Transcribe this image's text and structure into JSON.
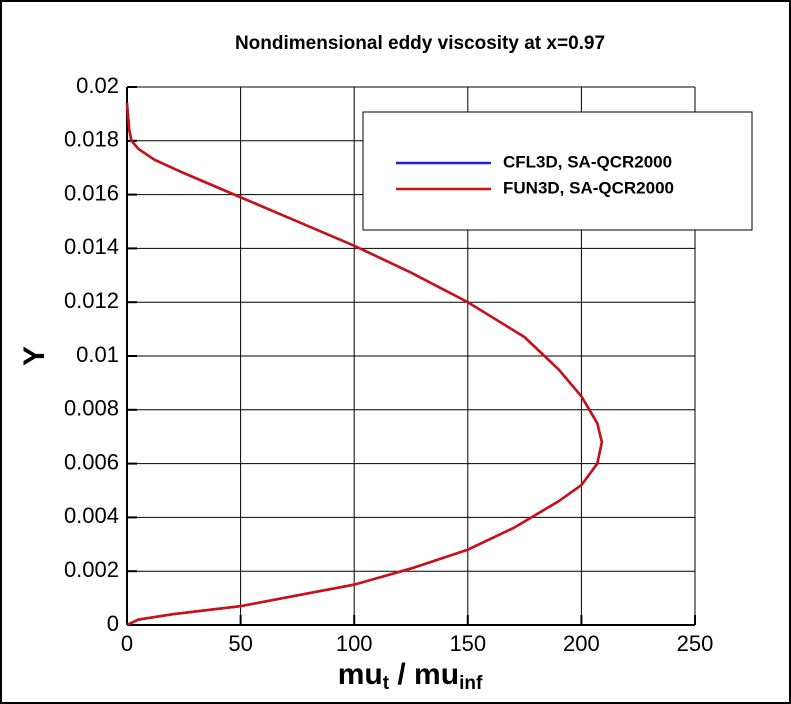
{
  "chart_data": {
    "type": "line",
    "title": "Nondimensional eddy viscosity at x=0.97",
    "xlabel": [
      "mu",
      "t",
      " / mu",
      "inf"
    ],
    "ylabel": "Y",
    "xlim": [
      0,
      250
    ],
    "xticks": [
      0,
      50,
      100,
      150,
      200,
      250
    ],
    "ylim": [
      0,
      0.02
    ],
    "yticks": [
      0,
      0.002,
      0.004,
      0.006,
      0.008,
      0.01,
      0.012,
      0.014,
      0.016,
      0.018,
      0.02
    ],
    "grid": true,
    "legend": "upper right",
    "series": [
      {
        "name": "CFL3D, SA-QCR2000",
        "color": "#1f1fe0",
        "x": [
          0,
          5,
          20,
          50,
          75,
          100,
          125,
          150,
          170,
          190,
          200,
          207,
          209,
          207,
          200,
          190,
          175,
          150,
          125,
          100,
          75,
          50,
          25,
          12,
          5,
          2,
          1,
          0.5,
          0
        ],
        "values": [
          0,
          0.0002,
          0.0004,
          0.0007,
          0.0011,
          0.0015,
          0.0021,
          0.0028,
          0.0036,
          0.0046,
          0.0052,
          0.006,
          0.0068,
          0.0075,
          0.0085,
          0.0095,
          0.0107,
          0.012,
          0.0131,
          0.0141,
          0.015,
          0.0159,
          0.0168,
          0.0173,
          0.0177,
          0.018,
          0.0184,
          0.0189,
          0.0194
        ]
      },
      {
        "name": "FUN3D, SA-QCR2000",
        "color": "#d01010",
        "x": [
          0,
          5,
          20,
          50,
          75,
          100,
          125,
          150,
          170,
          190,
          200,
          207,
          209,
          207,
          200,
          190,
          175,
          150,
          125,
          100,
          75,
          50,
          25,
          12,
          5,
          2,
          1,
          0.5,
          0
        ],
        "values": [
          0,
          0.0002,
          0.0004,
          0.0007,
          0.0011,
          0.0015,
          0.0021,
          0.0028,
          0.0036,
          0.0046,
          0.0052,
          0.006,
          0.0068,
          0.0075,
          0.0085,
          0.0095,
          0.0107,
          0.012,
          0.0131,
          0.0141,
          0.015,
          0.0159,
          0.0168,
          0.0173,
          0.0177,
          0.018,
          0.0184,
          0.0189,
          0.0194
        ]
      }
    ]
  }
}
